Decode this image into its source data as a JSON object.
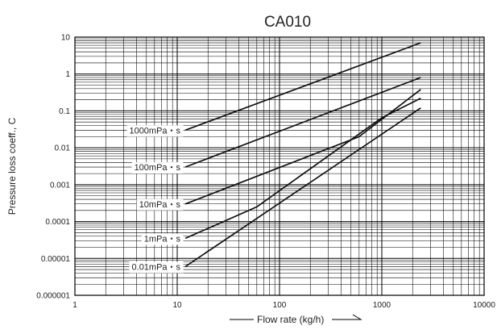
{
  "chart_data": {
    "type": "line",
    "title": "CA010",
    "xlabel": "Flow rate (kg/h)",
    "ylabel": "Pressure loss coeff., C",
    "x_scale": "log",
    "y_scale": "log",
    "xlim": [
      1,
      10000
    ],
    "ylim": [
      1e-06,
      10
    ],
    "x_tick_labels": [
      "1",
      "10",
      "100",
      "1000",
      "10000"
    ],
    "y_tick_labels": [
      "10",
      "1",
      "0.1",
      "0.01",
      "0.001",
      "0.0001",
      "0.00001",
      "0.000001"
    ],
    "grid": true,
    "series": [
      {
        "name": "1000mPa・s",
        "x": [
          12,
          2400
        ],
        "y": [
          0.03,
          7
        ]
      },
      {
        "name": "100mPa・s",
        "x": [
          12,
          2400
        ],
        "y": [
          0.003,
          0.8
        ]
      },
      {
        "name": "10mPa・s",
        "x": [
          12,
          600,
          2400
        ],
        "y": [
          0.0003,
          0.02,
          0.38
        ]
      },
      {
        "name": "1mPa・s",
        "x": [
          12,
          60,
          1000,
          2400
        ],
        "y": [
          3.5e-05,
          0.00025,
          0.065,
          0.22
        ]
      },
      {
        "name": "0.01mPa・s",
        "x": [
          12,
          2400
        ],
        "y": [
          6e-06,
          0.12
        ]
      }
    ]
  }
}
